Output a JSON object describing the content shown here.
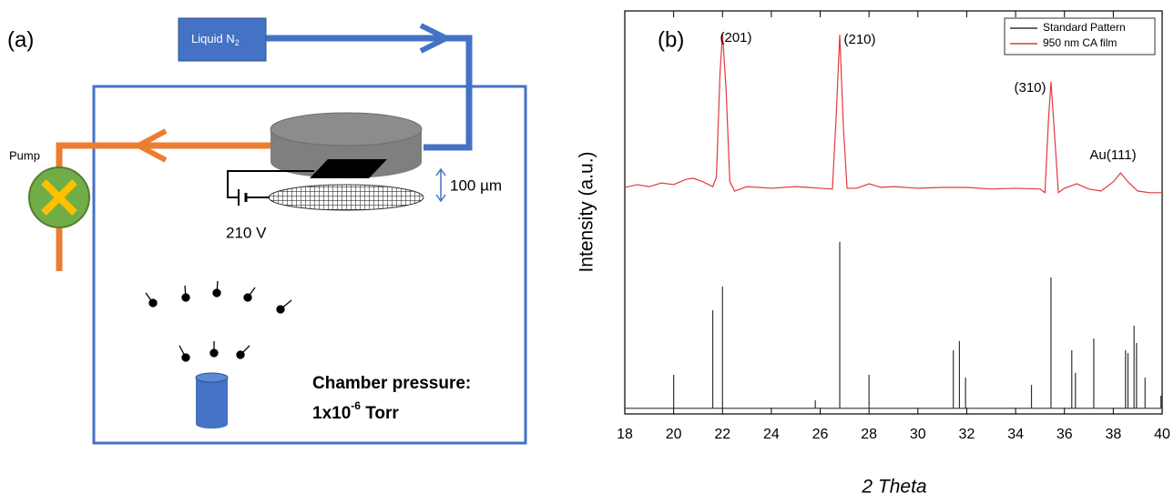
{
  "diagram": {
    "panel_label": "(a)",
    "liquid": "Liquid N",
    "liquid_sub": "2",
    "pump": "Pump",
    "gap": "100 µm",
    "voltage": "210 V",
    "pressure_line1": "Chamber pressure:",
    "pressure_base": "1x10",
    "pressure_exp": "-6",
    "pressure_unit": " Torr"
  },
  "chart_data": {
    "type": "line",
    "panel_label": "(b)",
    "x_label": "2 Theta",
    "y_label": "Intensity (a.u.)",
    "xlim": [
      18,
      40
    ],
    "xticks": [
      18,
      20,
      22,
      24,
      26,
      28,
      30,
      32,
      34,
      36,
      38,
      40
    ],
    "ylim": [
      0,
      100
    ],
    "legend": "upper right",
    "annotations": [
      "(201)",
      "(210)",
      "(310)",
      "Au(111)"
    ],
    "series": [
      {
        "name": "Standard Pattern",
        "color": "#333333",
        "x": [
          18,
          20,
          20,
          20,
          21.6,
          21.6,
          21.6,
          22,
          22,
          22,
          25.8,
          25.8,
          25.8,
          26.8,
          26.8,
          26.8,
          28,
          28,
          28,
          31.45,
          31.45,
          31.45,
          31.7,
          31.7,
          31.7,
          31.95,
          31.95,
          31.95,
          34.65,
          34.65,
          34.65,
          35.45,
          35.45,
          35.45,
          36.3,
          36.3,
          36.3,
          36.45,
          36.45,
          36.45,
          37.2,
          37.2,
          37.2,
          38.5,
          38.5,
          38.5,
          38.6,
          38.6,
          38.6,
          38.85,
          38.85,
          38.85,
          38.95,
          38.95,
          38.95,
          39.3,
          39.3,
          39.3,
          39.95,
          39.95,
          39.95,
          40
        ],
        "values": [
          1.4,
          1.4,
          9.7,
          1.4,
          1.4,
          25.7,
          1.4,
          1.4,
          31.6,
          1.4,
          1.4,
          3.4,
          1.4,
          1.4,
          42.7,
          1.4,
          1.4,
          9.7,
          1.4,
          1.4,
          15.8,
          1.4,
          1.4,
          18.1,
          1.4,
          1.4,
          9,
          1.4,
          1.4,
          7.2,
          1.4,
          1.4,
          33.9,
          1.4,
          1.4,
          15.8,
          1.4,
          1.4,
          10.2,
          1.4,
          1.4,
          18.7,
          1.4,
          1.4,
          15.8,
          1.4,
          1.4,
          15.1,
          1.4,
          1.4,
          21.9,
          1.4,
          1.4,
          17.6,
          1.4,
          1.4,
          9,
          1.4,
          1.4,
          4.5,
          1.4,
          1.4
        ]
      },
      {
        "name": "950 nm CA film",
        "color": "#e0393e",
        "x": [
          18,
          18.5,
          19,
          19.5,
          20,
          20.5,
          20.8,
          21.2,
          21.6,
          21.75,
          21.9,
          22,
          22.15,
          22.3,
          22.5,
          23,
          24,
          25,
          26,
          26.5,
          26.65,
          26.8,
          26.95,
          27.1,
          27.5,
          28,
          28.5,
          29,
          30,
          31,
          32,
          33,
          34,
          35,
          35.2,
          35.35,
          35.45,
          35.6,
          35.75,
          36,
          36.5,
          37,
          37.5,
          38,
          38.3,
          38.6,
          39,
          39.5,
          40
        ],
        "values": [
          56.2,
          56.9,
          56.4,
          57.3,
          56.9,
          58.2,
          58.5,
          57.6,
          56.4,
          58.7,
          84.7,
          94.4,
          80.1,
          57.6,
          55.3,
          56.4,
          56,
          56.4,
          56,
          55.8,
          73.4,
          94.1,
          71.1,
          56,
          56,
          57.1,
          56.2,
          56.4,
          56,
          56.2,
          56.2,
          55.8,
          56,
          55.8,
          54.9,
          73.4,
          82.4,
          68.8,
          54.9,
          56,
          57.1,
          55.8,
          55.3,
          57.6,
          59.8,
          57.6,
          55.3,
          54.9,
          54.9
        ]
      }
    ]
  }
}
